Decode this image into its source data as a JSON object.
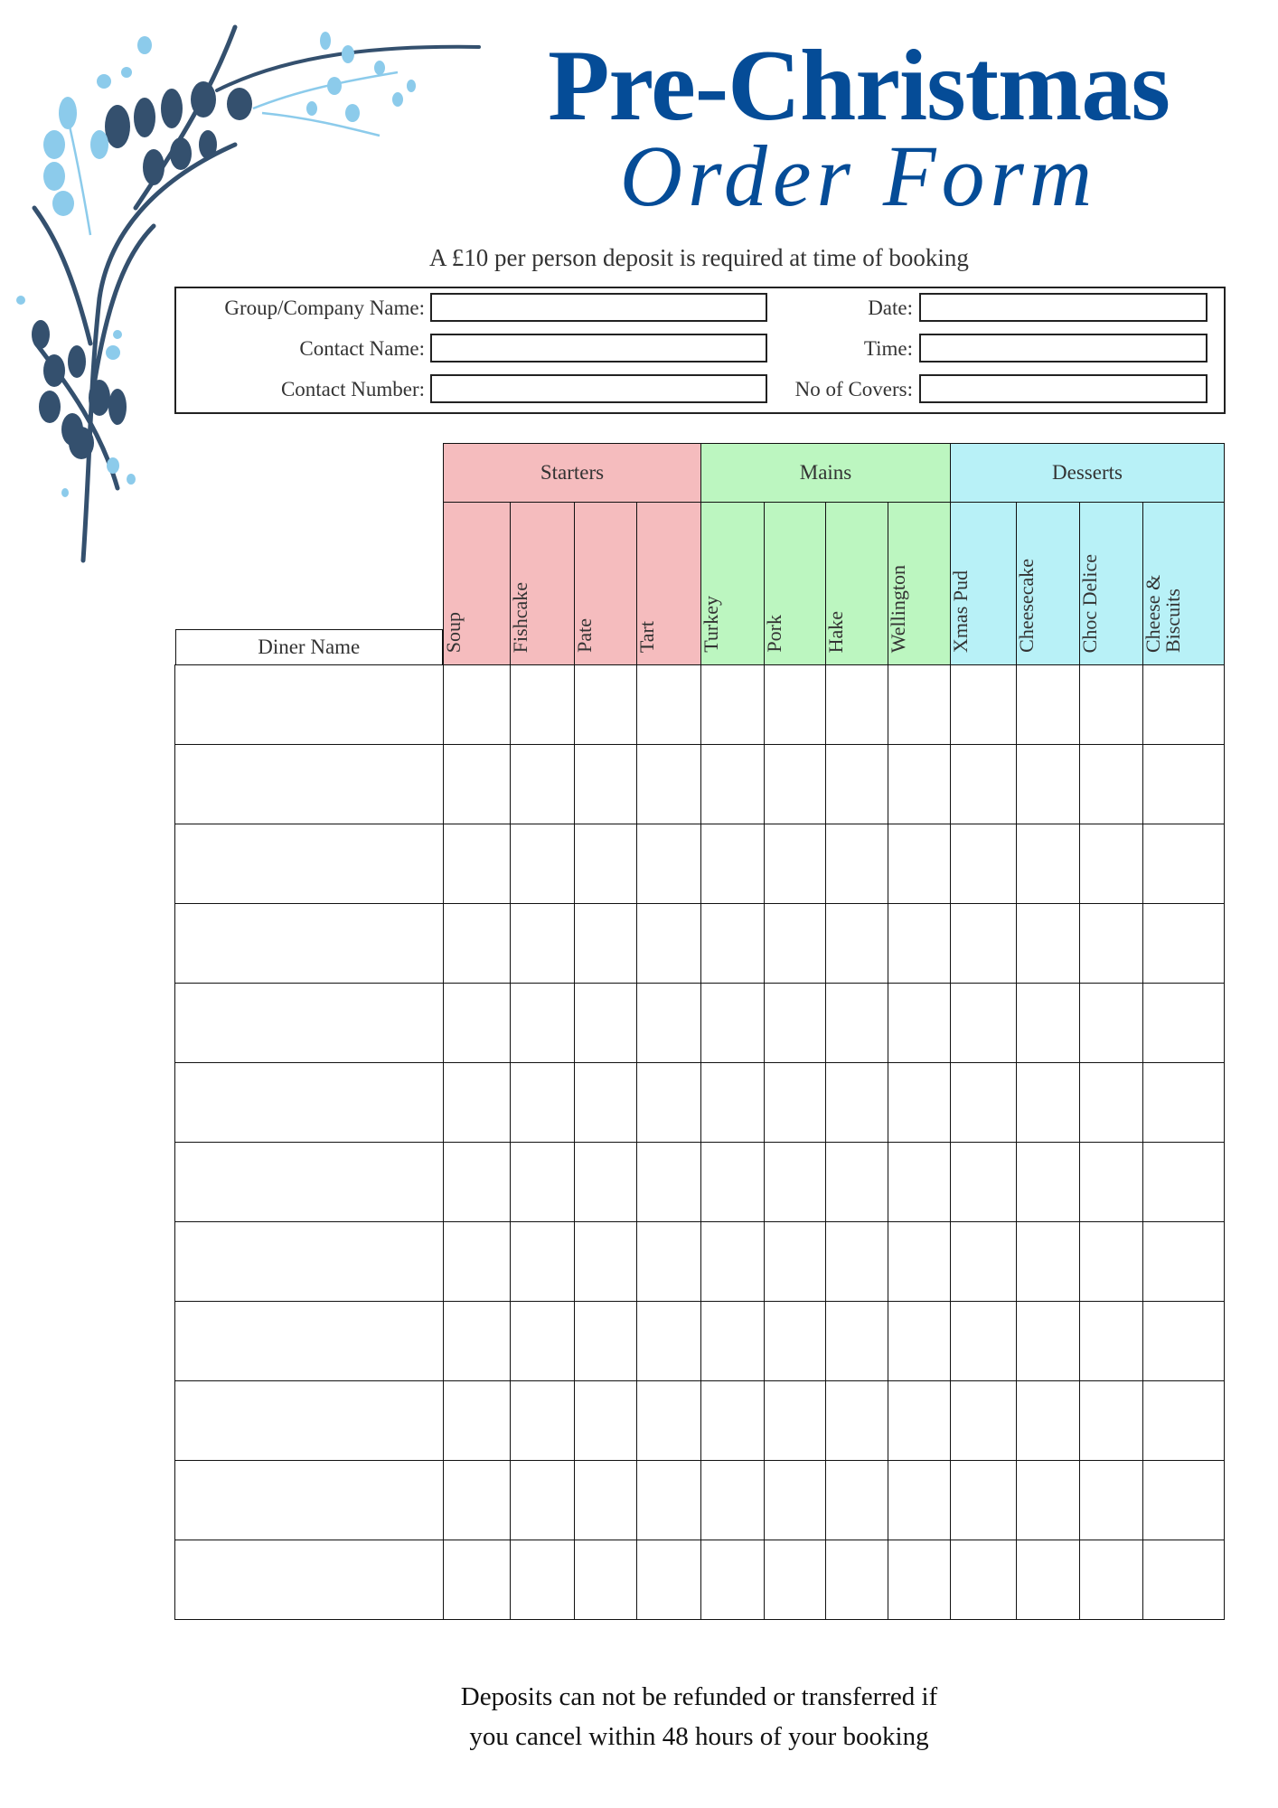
{
  "header": {
    "title": "Pre-Christmas",
    "subtitle": "Order Form",
    "deposit_note": "A £10 per person deposit is required at time of booking"
  },
  "info": {
    "group_company_name_label": "Group/Company Name:",
    "contact_name_label": "Contact Name:",
    "contact_number_label": "Contact Number:",
    "date_label": "Date:",
    "time_label": "Time:",
    "covers_label": "No of Covers:",
    "values": {
      "group_company_name": "",
      "contact_name": "",
      "contact_number": "",
      "date": "",
      "time": "",
      "covers": ""
    }
  },
  "table": {
    "diner_header": "Diner Name",
    "groups": [
      {
        "label": "Starters",
        "color": "#f5bcbe",
        "items": [
          "Soup",
          "Fishcake",
          "Pate",
          "Tart"
        ]
      },
      {
        "label": "Mains",
        "color": "#bcf6c0",
        "items": [
          "Turkey",
          "Pork",
          "Hake",
          "Wellington"
        ]
      },
      {
        "label": "Desserts",
        "color": "#b8f1f7",
        "items": [
          "Xmas Pud",
          "Cheesecake",
          "Choc Delice",
          "Cheese & Biscuits"
        ]
      }
    ],
    "row_count": 12
  },
  "footer": {
    "line1": "Deposits can not be refunded or transferred if",
    "line2": "you cancel within 48 hours of your booking"
  },
  "colors": {
    "title": "#054c97",
    "leaf_dark": "#34506e",
    "leaf_light": "#8ccbeb"
  }
}
